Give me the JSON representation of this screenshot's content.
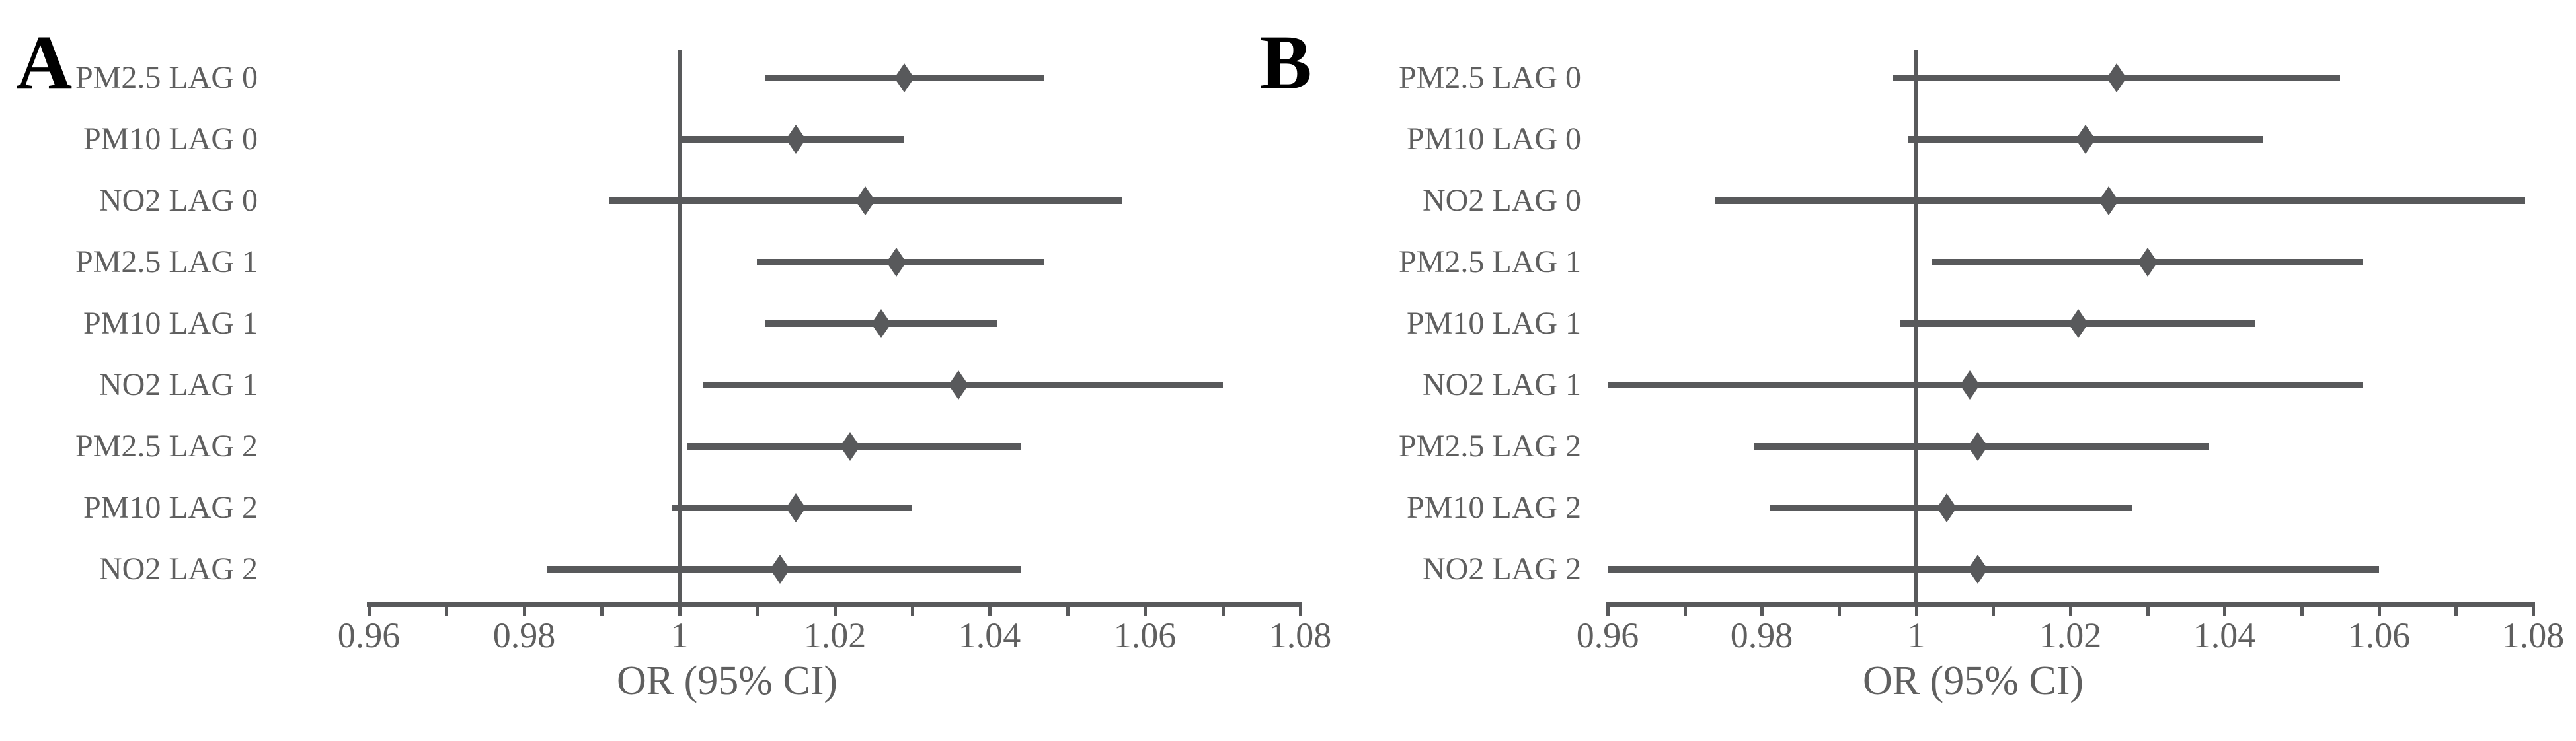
{
  "figure_title": "",
  "colors": {
    "plot_gray": "#58595b",
    "text_gray": "#5f5f5f",
    "panel_letter_black": "#000000",
    "background": "#ffffff"
  },
  "chart_data": [
    {
      "type": "scatter",
      "subtype": "forest-plot",
      "panel": "A",
      "title": "",
      "xlabel": "OR (95% CI)",
      "ylabel": "",
      "xlim": [
        0.96,
        1.08
      ],
      "xticks": [
        0.96,
        0.98,
        1.0,
        1.02,
        1.04,
        1.06,
        1.08
      ],
      "xtick_labels": [
        "0.96",
        "0.98",
        "1",
        "1.02",
        "1.04",
        "1.06",
        "1.08"
      ],
      "minor_xtick_interval": 0.01,
      "reference_line_x": 1.0,
      "grid": false,
      "legend": "none",
      "marker": "diamond",
      "categories": [
        "PM2.5 LAG 0",
        "PM10 LAG 0",
        "NO2 LAG 0",
        "PM2.5 LAG 1",
        "PM10 LAG 1",
        "NO2 LAG 1",
        "PM2.5 LAG 2",
        "PM10 LAG 2",
        "NO2 LAG 2"
      ],
      "series": [
        {
          "name": "OR",
          "values": [
            1.029,
            1.015,
            1.024,
            1.028,
            1.026,
            1.036,
            1.022,
            1.015,
            1.013
          ]
        },
        {
          "name": "CI_lower",
          "values": [
            1.011,
            1.0,
            0.991,
            1.01,
            1.011,
            1.003,
            1.001,
            0.999,
            0.983
          ]
        },
        {
          "name": "CI_upper",
          "values": [
            1.047,
            1.029,
            1.057,
            1.047,
            1.041,
            1.07,
            1.044,
            1.03,
            1.044
          ]
        }
      ]
    },
    {
      "type": "scatter",
      "subtype": "forest-plot",
      "panel": "B",
      "title": "",
      "xlabel": "OR (95% CI)",
      "ylabel": "",
      "xlim": [
        0.96,
        1.08
      ],
      "xticks": [
        0.96,
        0.98,
        1.0,
        1.02,
        1.04,
        1.06,
        1.08
      ],
      "xtick_labels": [
        "0.96",
        "0.98",
        "1",
        "1.02",
        "1.04",
        "1.06",
        "1.08"
      ],
      "minor_xtick_interval": 0.01,
      "reference_line_x": 1.0,
      "grid": false,
      "legend": "none",
      "marker": "diamond",
      "categories": [
        "PM2.5 LAG 0",
        "PM10 LAG 0",
        "NO2 LAG 0",
        "PM2.5 LAG 1",
        "PM10 LAG 1",
        "NO2 LAG 1",
        "PM2.5 LAG 2",
        "PM10 LAG 2",
        "NO2 LAG 2"
      ],
      "series": [
        {
          "name": "OR",
          "values": [
            1.026,
            1.022,
            1.025,
            1.03,
            1.021,
            1.007,
            1.008,
            1.004,
            1.008
          ]
        },
        {
          "name": "CI_lower",
          "values": [
            0.997,
            0.999,
            0.974,
            1.002,
            0.998,
            0.96,
            0.979,
            0.981,
            0.96
          ]
        },
        {
          "name": "CI_upper",
          "values": [
            1.055,
            1.045,
            1.079,
            1.058,
            1.044,
            1.058,
            1.038,
            1.028,
            1.06
          ]
        }
      ]
    }
  ]
}
